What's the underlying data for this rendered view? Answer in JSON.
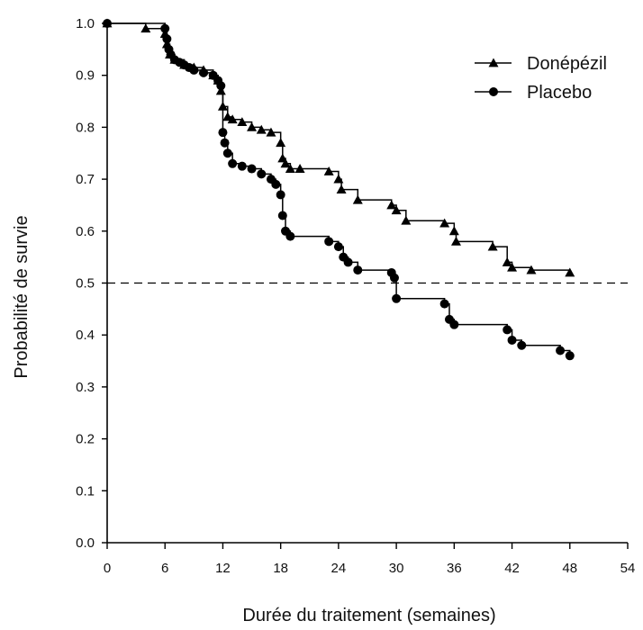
{
  "chart_data": {
    "type": "line",
    "title": "",
    "xlabel": "Durée du traitement (semaines)",
    "ylabel": "Probabilité de survie",
    "xlim": [
      0,
      54
    ],
    "ylim": [
      0,
      1.0
    ],
    "x_ticks": [
      "0",
      "6",
      "12",
      "18",
      "24",
      "30",
      "36",
      "42",
      "48",
      "54"
    ],
    "y_ticks": [
      "0.0",
      "0.1",
      "0.2",
      "0.3",
      "0.4",
      "0.5",
      "0.6",
      "0.7",
      "0.8",
      "0.9",
      "1.0"
    ],
    "step": true,
    "grid": false,
    "legend_position": "top-right",
    "reference_line": {
      "y": 0.5,
      "style": "dashed"
    },
    "series": [
      {
        "name": "Donépézil",
        "marker": "triangle",
        "color": "#000000",
        "x": [
          0,
          4,
          6,
          6.2,
          6.5,
          7,
          8,
          9,
          10,
          11,
          11.5,
          11.8,
          12,
          12.5,
          13,
          14,
          15,
          16,
          17,
          18,
          18.2,
          18.5,
          19,
          20,
          23,
          24,
          24.3,
          26,
          29.5,
          30,
          31,
          35,
          36,
          36.2,
          40,
          41.5,
          42,
          44,
          48
        ],
        "y": [
          1.0,
          0.99,
          0.98,
          0.96,
          0.94,
          0.93,
          0.92,
          0.915,
          0.91,
          0.9,
          0.89,
          0.87,
          0.84,
          0.82,
          0.815,
          0.81,
          0.8,
          0.795,
          0.79,
          0.77,
          0.74,
          0.73,
          0.72,
          0.72,
          0.715,
          0.7,
          0.68,
          0.66,
          0.65,
          0.64,
          0.62,
          0.615,
          0.6,
          0.58,
          0.57,
          0.54,
          0.53,
          0.525,
          0.52
        ]
      },
      {
        "name": "Placebo",
        "marker": "circle",
        "color": "#000000",
        "x": [
          0,
          6,
          6.2,
          6.4,
          6.6,
          7,
          7.5,
          8,
          8.5,
          9,
          10,
          11,
          11.5,
          11.8,
          12,
          12.2,
          12.5,
          13,
          14,
          15,
          16,
          17,
          17.5,
          18,
          18.2,
          18.5,
          19,
          23,
          24,
          24.5,
          25,
          26,
          29.5,
          29.8,
          30,
          35,
          35.5,
          36,
          41.5,
          42,
          43,
          47,
          48
        ],
        "y": [
          1.0,
          0.99,
          0.97,
          0.95,
          0.94,
          0.93,
          0.925,
          0.92,
          0.915,
          0.91,
          0.905,
          0.9,
          0.89,
          0.88,
          0.79,
          0.77,
          0.75,
          0.73,
          0.725,
          0.72,
          0.71,
          0.7,
          0.69,
          0.67,
          0.63,
          0.6,
          0.59,
          0.58,
          0.57,
          0.55,
          0.54,
          0.525,
          0.52,
          0.51,
          0.47,
          0.46,
          0.43,
          0.42,
          0.41,
          0.39,
          0.38,
          0.37,
          0.36
        ]
      }
    ]
  }
}
